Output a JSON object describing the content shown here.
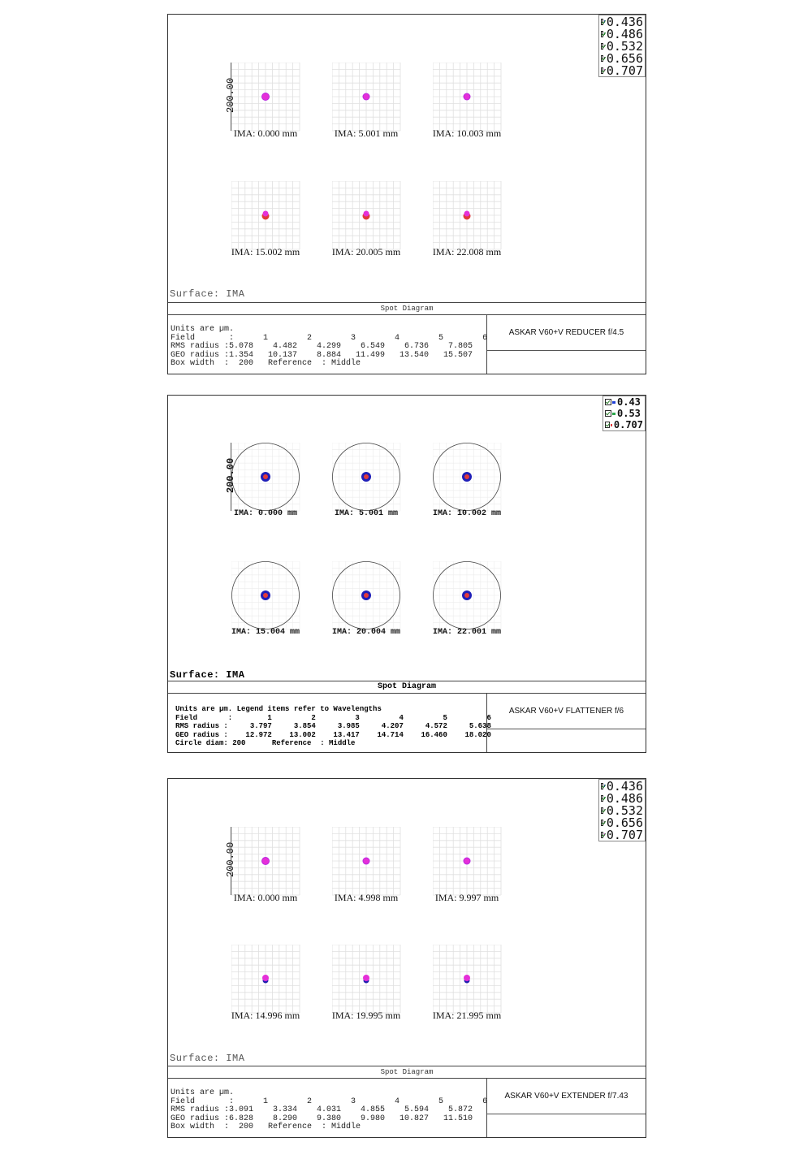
{
  "panels": [
    {
      "style": "box",
      "legend": [
        "0.436",
        "0.486",
        "0.532",
        "0.656",
        "0.707"
      ],
      "legend_colors": [
        "#1f3fd6",
        "#2aa64a",
        "#9b9b9b",
        "#555555",
        "#e52fd8"
      ],
      "scale_label": "200.00",
      "fields": [
        {
          "label": "IMA:",
          "value": "0.000",
          "unit": "mm"
        },
        {
          "label": "IMA:",
          "value": "5.001",
          "unit": "mm"
        },
        {
          "label": "IMA:",
          "value": "10.003",
          "unit": "mm"
        },
        {
          "label": "IMA:",
          "value": "15.002",
          "unit": "mm"
        },
        {
          "label": "IMA:",
          "value": "20.005",
          "unit": "mm"
        },
        {
          "label": "IMA:",
          "value": "22.008",
          "unit": "mm"
        }
      ],
      "spot_colors": [
        "#e52fd8",
        "#e52fd8",
        "#e52fd8",
        "#e23a3a",
        "#e23a3a",
        "#e52fd8"
      ],
      "surface": "Surface: IMA",
      "title": "Spot Diagram",
      "info_lines": [
        "Units are µm.",
        "Field       :      1        2        3        4        5        6",
        "RMS radius :5.078    4.482    4.299    6.549    6.736    7.805",
        "GEO radius :1.354   10.137    8.884   11.499   13.540   15.507",
        "Box width  :  200   Reference  : Middle"
      ],
      "name": "ASKAR V60+V REDUCER  f/4.5"
    },
    {
      "style": "circle",
      "legend": [
        "0.43",
        "0.53",
        "0.707"
      ],
      "legend_colors": [
        "#1f3fd6",
        "#2aa64a",
        "#e23a3a"
      ],
      "scale_label": "200.00",
      "fields": [
        {
          "label": "IMA:",
          "value": "0.000",
          "unit": "mm"
        },
        {
          "label": "IMA:",
          "value": "5.001",
          "unit": "mm"
        },
        {
          "label": "IMA:",
          "value": "10.002",
          "unit": "mm"
        },
        {
          "label": "IMA:",
          "value": "15.004",
          "unit": "mm"
        },
        {
          "label": "IMA:",
          "value": "20.004",
          "unit": "mm"
        },
        {
          "label": "IMA:",
          "value": "22.001",
          "unit": "mm"
        }
      ],
      "spot_colors": [
        "#1f1fb8",
        "#1f1fb8",
        "#1f1fb8",
        "#1f1fb8",
        "#1f1fb8",
        "#1f1fb8"
      ],
      "surface": "Surface: IMA",
      "title": "Spot Diagram",
      "info_lines": [
        "Units are µm. Legend items refer to Wavelengths",
        "Field       :        1         2         3         4         5         6",
        "RMS radius :     3.797     3.854     3.985     4.207     4.572     5.638",
        "GEO radius :    12.972    13.002    13.417    14.714    16.460    18.020",
        "Circle diam: 200      Reference  : Middle"
      ],
      "name": "ASKAR V60+V FLATTENER  f/6"
    },
    {
      "style": "box",
      "legend": [
        "0.436",
        "0.486",
        "0.532",
        "0.656",
        "0.707"
      ],
      "legend_colors": [
        "#1f3fd6",
        "#2aa64a",
        "#9b9b9b",
        "#555555",
        "#e52fd8"
      ],
      "scale_label": "200.00",
      "fields": [
        {
          "label": "IMA:",
          "value": "0.000",
          "unit": "mm"
        },
        {
          "label": "IMA:",
          "value": "4.998",
          "unit": "mm"
        },
        {
          "label": "IMA:",
          "value": "9.997",
          "unit": "mm"
        },
        {
          "label": "IMA:",
          "value": "14.996",
          "unit": "mm"
        },
        {
          "label": "IMA:",
          "value": "19.995",
          "unit": "mm"
        },
        {
          "label": "IMA:",
          "value": "21.995",
          "unit": "mm"
        }
      ],
      "spot_colors": [
        "#e52fd8",
        "#e52fd8",
        "#e52fd8",
        "#e52fd8",
        "#e52fd8",
        "#e52fd8"
      ],
      "surface": "Surface: IMA",
      "title": "Spot Diagram",
      "info_lines": [
        "Units are µm.",
        "Field       :      1        2        3        4        5        6",
        "RMS radius :3.091    3.334    4.031    4.855    5.594    5.872",
        "GEO radius :6.828    8.290    9.380    9.980   10.827   11.510",
        "Box width  :  200   Reference  : Middle"
      ],
      "name": "ASKAR V60+V EXTENDER  f/7.43"
    }
  ]
}
